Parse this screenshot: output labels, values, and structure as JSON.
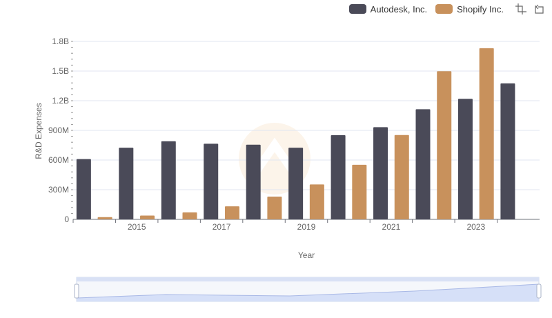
{
  "chart_data": {
    "type": "bar",
    "x": [
      "2014",
      "2015",
      "2016",
      "2017",
      "2018",
      "2019",
      "2020",
      "2021",
      "2022",
      "2023",
      "2024"
    ],
    "series": [
      {
        "name": "Autodesk, Inc.",
        "color": "#4a4a58",
        "values": [
          610000000,
          725000000,
          790000000,
          765000000,
          755000000,
          725000000,
          851000000,
          932000000,
          1114000000,
          1219000000,
          1375000000
        ]
      },
      {
        "name": "Shopify Inc.",
        "color": "#c8915c",
        "values": [
          23000000,
          38000000,
          71000000,
          132000000,
          230000000,
          353000000,
          552000000,
          853000000,
          1498000000,
          1731000000,
          null
        ]
      }
    ],
    "xtick_labels": [
      "2015",
      "2017",
      "2019",
      "2021",
      "2023"
    ],
    "yticks": [
      0,
      300000000,
      600000000,
      900000000,
      1200000000,
      1500000000,
      1800000000
    ],
    "ytick_labels": [
      "0",
      "300M",
      "600M",
      "900M",
      "1.2B",
      "1.5B",
      "1.8B"
    ],
    "ylim": [
      0,
      1800000000
    ],
    "xlabel": "Year",
    "ylabel": "R&D Expenses",
    "grid": true,
    "legend_position": "top-right",
    "datazoom_slider": true
  },
  "toolbox": {
    "zoom_icon": "zoom-icon",
    "reset_icon": "restore-icon"
  }
}
